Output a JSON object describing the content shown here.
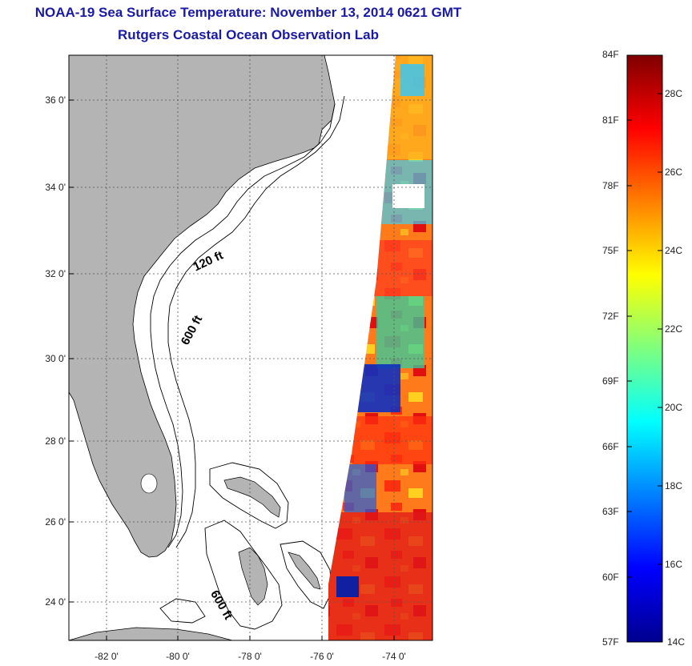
{
  "header": {
    "title": "NOAA-19 Sea Surface Temperature:  November 13, 2014 0621 GMT",
    "subtitle": "Rutgers Coastal Ocean Observation Lab"
  },
  "map": {
    "latitude_labels": [
      "36 0'",
      "34 0'",
      "32 0'",
      "30 0'",
      "28 0'",
      "26 0'",
      "24 0'"
    ],
    "longitude_labels": [
      "-82 0'",
      "-80 0'",
      "-78 0'",
      "-76 0'",
      "-74 0'"
    ],
    "contour_labels": [
      "120 ft",
      "600 ft",
      "600 ft"
    ],
    "colors": {
      "land": "#b4b4b4",
      "ocean": "#ffffff",
      "grid": "#555555",
      "contour": "#000000"
    }
  },
  "colorbar": {
    "fahrenheit_labels": [
      "84F",
      "81F",
      "78F",
      "75F",
      "72F",
      "69F",
      "66F",
      "63F",
      "60F",
      "57F"
    ],
    "celsius_labels": [
      "28C",
      "26C",
      "24C",
      "22C",
      "20C",
      "18C",
      "16C",
      "14C"
    ],
    "colormap": "jet",
    "min_label": "57F",
    "max_label": "84F"
  }
}
